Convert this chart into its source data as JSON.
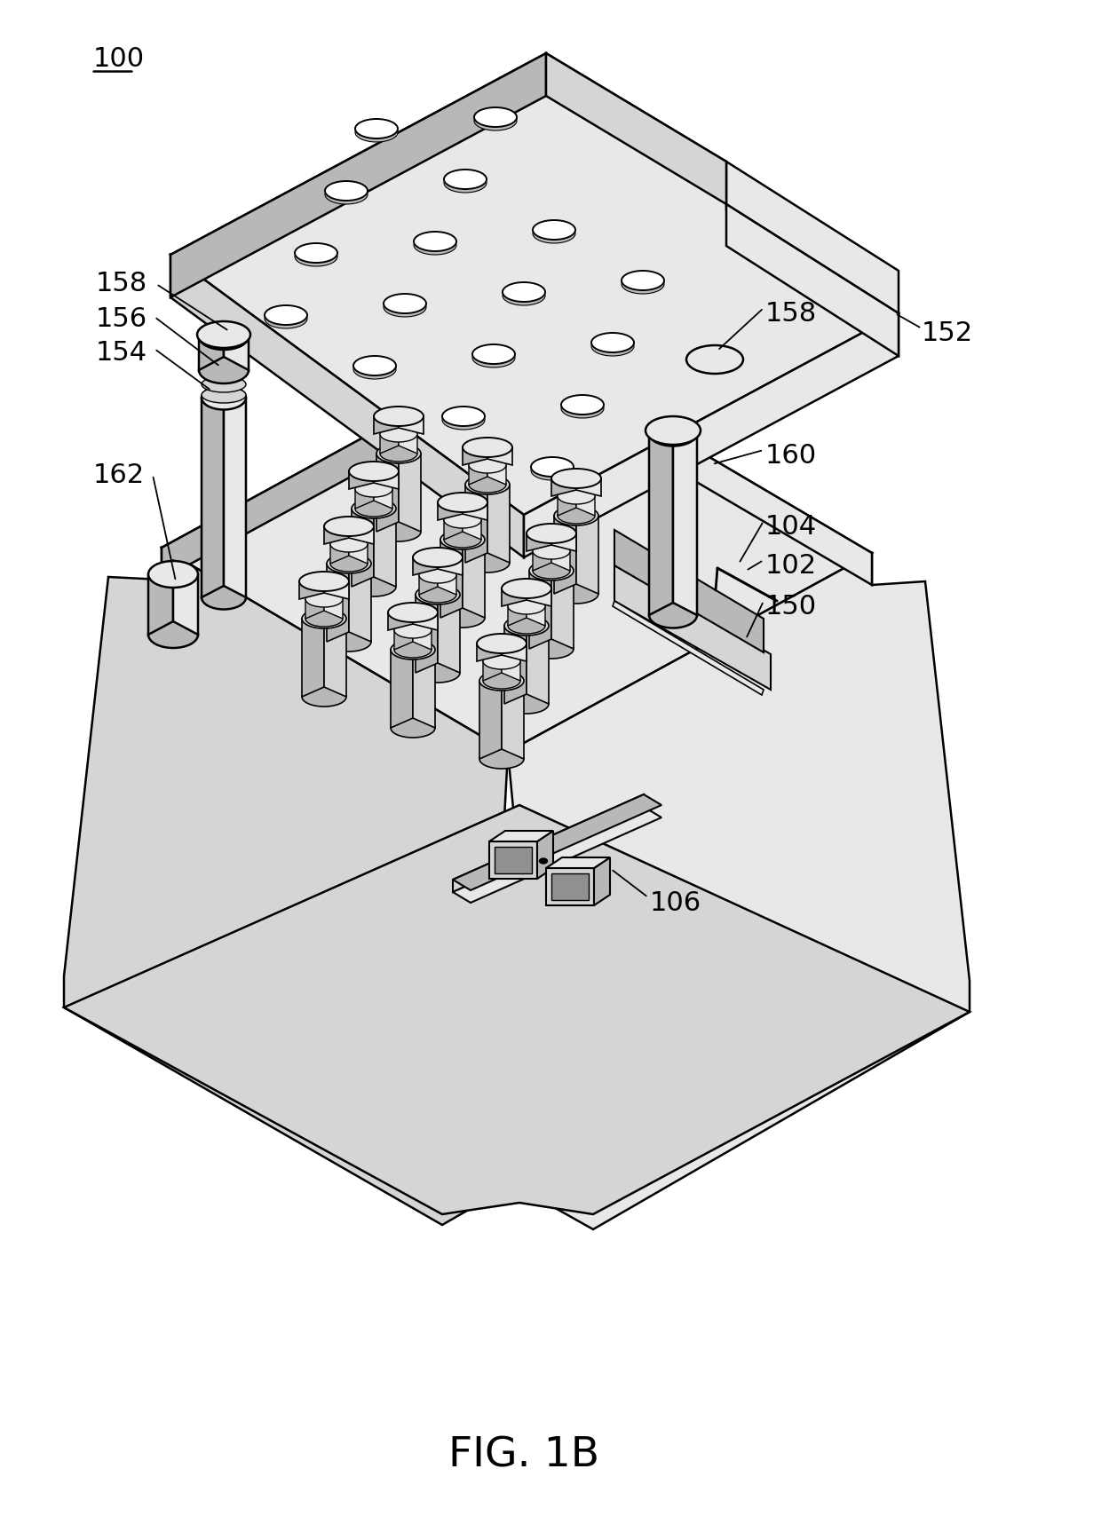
{
  "bg": "#ffffff",
  "lc": "#000000",
  "W": "#ffffff",
  "LG": "#e8e8e8",
  "MG": "#d5d5d5",
  "DG": "#b8b8b8",
  "VDG": "#909090",
  "lw_main": 1.8,
  "lw_thin": 1.2,
  "title": "FIG. 1B",
  "title_fs": 34,
  "ann_fs": 22
}
